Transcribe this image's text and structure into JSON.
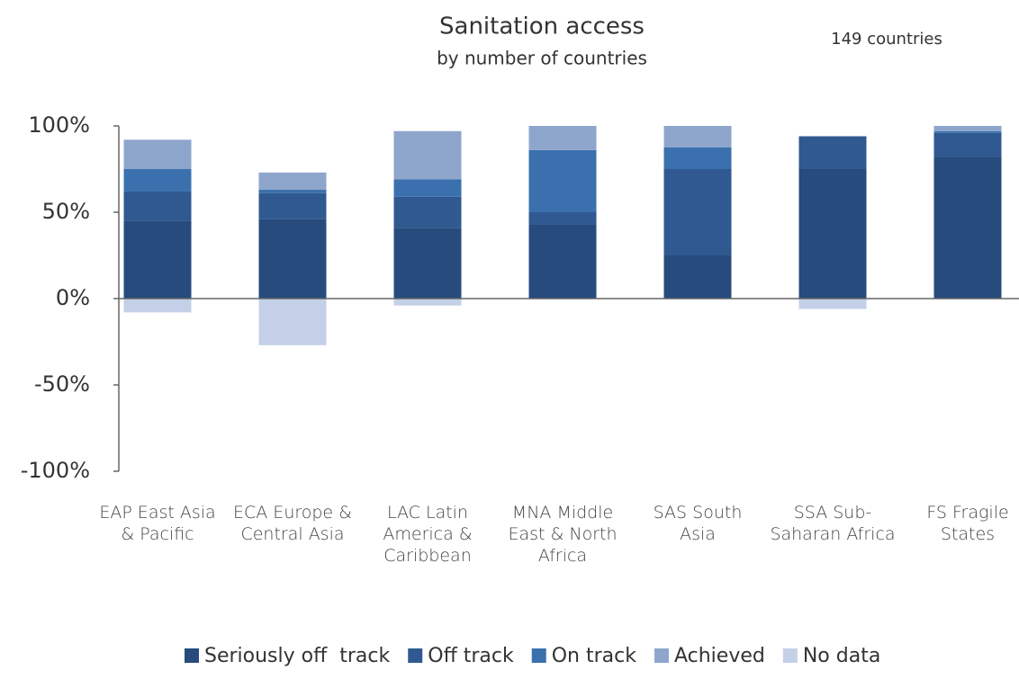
{
  "chart_data": {
    "type": "stacked_bar",
    "title": "Sanitation access",
    "subtitle": "by number of countries",
    "annotation": "149 countries",
    "categories": [
      "EAP East Asia & Pacific",
      "ECA Europe & Central Asia",
      "LAC Latin America & Caribbean",
      "MNA Middle East & North Africa",
      "SAS South Asia",
      "SSA Sub-Saharan Africa",
      "FS Fragile States"
    ],
    "series": [
      {
        "name": "Seriously off  track",
        "color": "#264b7c",
        "values": [
          45,
          46,
          41,
          43,
          25,
          75,
          82
        ]
      },
      {
        "name": "Off track",
        "color": "#2f5990",
        "values": [
          17,
          15,
          18,
          7,
          50,
          19,
          14
        ]
      },
      {
        "name": "On track",
        "color": "#3a70ad",
        "values": [
          13,
          2,
          10,
          36,
          12.5,
          0,
          1
        ]
      },
      {
        "name": "Achieved",
        "color": "#8ea6cc",
        "values": [
          17,
          10,
          28,
          14,
          12.5,
          0,
          3
        ]
      },
      {
        "name": "No data",
        "color": "#c3d0e7",
        "values": [
          -8,
          -27,
          -4,
          0,
          0,
          -6,
          0
        ]
      }
    ],
    "ylim": [
      -100,
      100
    ],
    "yticks": [
      {
        "value": -100,
        "label": "-100%"
      },
      {
        "value": -50,
        "label": "-50%"
      },
      {
        "value": 0,
        "label": "0%"
      },
      {
        "value": 50,
        "label": "50%"
      },
      {
        "value": 100,
        "label": "100%"
      }
    ],
    "legend": "bottom"
  }
}
